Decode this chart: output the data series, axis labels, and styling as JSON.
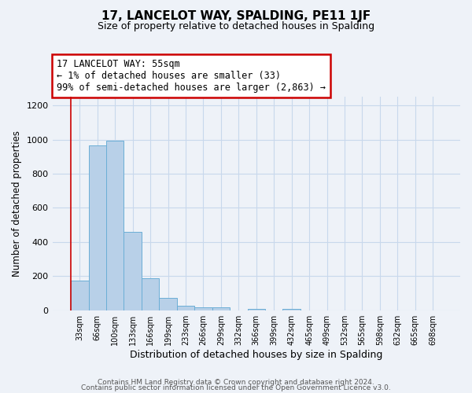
{
  "title": "17, LANCELOT WAY, SPALDING, PE11 1JF",
  "subtitle": "Size of property relative to detached houses in Spalding",
  "xlabel": "Distribution of detached houses by size in Spalding",
  "ylabel": "Number of detached properties",
  "bar_labels": [
    "33sqm",
    "66sqm",
    "100sqm",
    "133sqm",
    "166sqm",
    "199sqm",
    "233sqm",
    "266sqm",
    "299sqm",
    "332sqm",
    "366sqm",
    "399sqm",
    "432sqm",
    "465sqm",
    "499sqm",
    "532sqm",
    "565sqm",
    "598sqm",
    "632sqm",
    "665sqm",
    "698sqm"
  ],
  "bar_values": [
    175,
    965,
    995,
    460,
    188,
    72,
    25,
    18,
    15,
    0,
    10,
    0,
    10,
    0,
    0,
    0,
    0,
    0,
    0,
    0,
    0
  ],
  "bar_color": "#b8d0e8",
  "bar_edge_color": "#6baed6",
  "annotation_title": "17 LANCELOT WAY: 55sqm",
  "annotation_line1": "← 1% of detached houses are smaller (33)",
  "annotation_line2": "99% of semi-detached houses are larger (2,863) →",
  "annotation_box_facecolor": "#ffffff",
  "annotation_box_edgecolor": "#cc0000",
  "vline_color": "#cc0000",
  "ylim": [
    0,
    1250
  ],
  "yticks": [
    0,
    200,
    400,
    600,
    800,
    1000,
    1200
  ],
  "footer_line1": "Contains HM Land Registry data © Crown copyright and database right 2024.",
  "footer_line2": "Contains public sector information licensed under the Open Government Licence v3.0.",
  "bg_color": "#eef2f8",
  "grid_color": "#c8d8ec"
}
